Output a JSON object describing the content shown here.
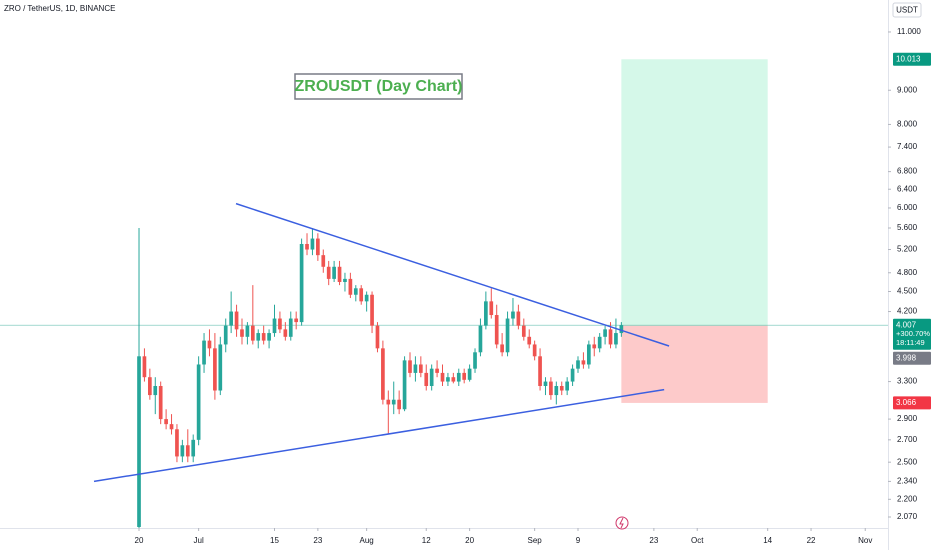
{
  "chart_data": {
    "type": "candlestick",
    "title": "ZRO / TetherUS, 1D, BINANCE",
    "annotation": "ZROUSDT (Day Chart)",
    "y_axis_label": "USDT",
    "log_scale": true,
    "grid": false,
    "up_color": "#26a69a",
    "down_color": "#ef5350",
    "line_color": "#3b5fe0",
    "xlim": [
      -25.65,
      138.2
    ],
    "ylim": [
      1.993,
      12.28
    ],
    "xticks": [
      {
        "value": 0,
        "label": "20"
      },
      {
        "value": 11,
        "label": "Jul"
      },
      {
        "value": 25,
        "label": "15"
      },
      {
        "value": 33,
        "label": "23"
      },
      {
        "value": 42,
        "label": "Aug"
      },
      {
        "value": 53,
        "label": "12"
      },
      {
        "value": 61,
        "label": "20"
      },
      {
        "value": 73,
        "label": "Sep"
      },
      {
        "value": 81,
        "label": "9"
      },
      {
        "value": 95,
        "label": "23"
      },
      {
        "value": 103,
        "label": "Oct"
      },
      {
        "value": 116,
        "label": "14"
      },
      {
        "value": 124,
        "label": "22"
      },
      {
        "value": 134,
        "label": "Nov"
      }
    ],
    "yticks": [
      {
        "value": 11,
        "label": "11.000"
      },
      {
        "value": 9,
        "label": "9.000"
      },
      {
        "value": 8,
        "label": "8.000"
      },
      {
        "value": 7.4,
        "label": "7.400"
      },
      {
        "value": 6.8,
        "label": "6.800"
      },
      {
        "value": 6.4,
        "label": "6.400"
      },
      {
        "value": 6,
        "label": "6.000"
      },
      {
        "value": 5.6,
        "label": "5.600"
      },
      {
        "value": 5.2,
        "label": "5.200"
      },
      {
        "value": 4.8,
        "label": "4.800"
      },
      {
        "value": 4.5,
        "label": "4.500"
      },
      {
        "value": 4.2,
        "label": "4.200"
      },
      {
        "value": 3.3,
        "label": "3.300"
      },
      {
        "value": 2.9,
        "label": "2.900"
      },
      {
        "value": 2.7,
        "label": "2.700"
      },
      {
        "value": 2.5,
        "label": "2.500"
      },
      {
        "value": 2.34,
        "label": "2.340"
      },
      {
        "value": 2.2,
        "label": "2.200"
      },
      {
        "value": 2.07,
        "label": "2.070"
      }
    ],
    "x": [
      0,
      1,
      2,
      3,
      4,
      5,
      6,
      7,
      8,
      9,
      10,
      11,
      12,
      13,
      14,
      15,
      16,
      17,
      18,
      19,
      20,
      21,
      22,
      23,
      24,
      25,
      26,
      27,
      28,
      29,
      30,
      31,
      32,
      33,
      34,
      35,
      36,
      37,
      38,
      39,
      40,
      41,
      42,
      43,
      44,
      45,
      46,
      47,
      48,
      49,
      50,
      51,
      52,
      53,
      54,
      55,
      56,
      57,
      58,
      59,
      60,
      61,
      62,
      63,
      64,
      65,
      66,
      67,
      68,
      69,
      70,
      71,
      72,
      73,
      74,
      75,
      76,
      77,
      78,
      79,
      80,
      81,
      82,
      83,
      84,
      85,
      86,
      87,
      88,
      89
    ],
    "ohlc": [
      [
        2.0,
        5.6,
        1.99,
        3.6
      ],
      [
        3.6,
        3.7,
        3.3,
        3.35
      ],
      [
        3.35,
        3.45,
        3.1,
        3.15
      ],
      [
        3.15,
        3.35,
        2.95,
        3.25
      ],
      [
        3.25,
        3.3,
        2.85,
        2.9
      ],
      [
        2.9,
        3.0,
        2.8,
        2.85
      ],
      [
        2.85,
        2.95,
        2.75,
        2.8
      ],
      [
        2.8,
        2.85,
        2.5,
        2.55
      ],
      [
        2.55,
        2.7,
        2.5,
        2.65
      ],
      [
        2.65,
        2.8,
        2.5,
        2.55
      ],
      [
        2.55,
        2.75,
        2.5,
        2.7
      ],
      [
        2.7,
        3.6,
        2.65,
        3.5
      ],
      [
        3.5,
        3.9,
        3.4,
        3.8
      ],
      [
        3.8,
        3.95,
        3.6,
        3.7
      ],
      [
        3.7,
        3.9,
        3.1,
        3.2
      ],
      [
        3.2,
        3.85,
        3.15,
        3.75
      ],
      [
        3.75,
        4.1,
        3.65,
        4.0
      ],
      [
        4.0,
        4.5,
        3.9,
        4.2
      ],
      [
        4.2,
        4.3,
        3.85,
        3.95
      ],
      [
        3.95,
        4.1,
        3.75,
        3.85
      ],
      [
        3.85,
        4.05,
        3.75,
        4.0
      ],
      [
        4.0,
        4.6,
        3.75,
        3.8
      ],
      [
        3.8,
        3.95,
        3.7,
        3.9
      ],
      [
        3.9,
        4.0,
        3.75,
        3.8
      ],
      [
        3.8,
        3.95,
        3.7,
        3.9
      ],
      [
        3.9,
        4.3,
        3.85,
        4.1
      ],
      [
        4.1,
        4.2,
        3.9,
        3.95
      ],
      [
        3.95,
        4.05,
        3.8,
        3.85
      ],
      [
        3.85,
        4.2,
        3.8,
        4.1
      ],
      [
        4.1,
        4.2,
        3.95,
        4.05
      ],
      [
        4.05,
        5.4,
        4.0,
        5.3
      ],
      [
        5.3,
        5.5,
        5.1,
        5.2
      ],
      [
        5.2,
        5.6,
        5.1,
        5.4
      ],
      [
        5.4,
        5.5,
        5.0,
        5.1
      ],
      [
        5.1,
        5.2,
        4.8,
        4.9
      ],
      [
        4.9,
        5.0,
        4.6,
        4.7
      ],
      [
        4.7,
        5.0,
        4.65,
        4.9
      ],
      [
        4.9,
        5.0,
        4.6,
        4.65
      ],
      [
        4.65,
        4.8,
        4.5,
        4.7
      ],
      [
        4.7,
        4.8,
        4.4,
        4.45
      ],
      [
        4.45,
        4.6,
        4.35,
        4.55
      ],
      [
        4.55,
        4.6,
        4.3,
        4.35
      ],
      [
        4.35,
        4.5,
        4.2,
        4.45
      ],
      [
        4.45,
        4.5,
        3.9,
        4.0
      ],
      [
        4.0,
        4.05,
        3.65,
        3.7
      ],
      [
        3.7,
        3.8,
        3.05,
        3.1
      ],
      [
        3.1,
        3.2,
        2.75,
        3.05
      ],
      [
        3.05,
        3.3,
        2.95,
        3.1
      ],
      [
        3.1,
        3.2,
        2.95,
        3.0
      ],
      [
        3.0,
        3.6,
        2.98,
        3.55
      ],
      [
        3.55,
        3.65,
        3.35,
        3.4
      ],
      [
        3.4,
        3.6,
        3.3,
        3.5
      ],
      [
        3.5,
        3.6,
        3.35,
        3.4
      ],
      [
        3.4,
        3.5,
        3.2,
        3.25
      ],
      [
        3.25,
        3.5,
        3.2,
        3.45
      ],
      [
        3.45,
        3.55,
        3.35,
        3.4
      ],
      [
        3.4,
        3.5,
        3.25,
        3.3
      ],
      [
        3.3,
        3.4,
        3.25,
        3.35
      ],
      [
        3.35,
        3.4,
        3.28,
        3.3
      ],
      [
        3.3,
        3.45,
        3.25,
        3.4
      ],
      [
        3.4,
        3.45,
        3.28,
        3.32
      ],
      [
        3.32,
        3.5,
        3.3,
        3.45
      ],
      [
        3.45,
        3.7,
        3.4,
        3.65
      ],
      [
        3.65,
        4.1,
        3.6,
        4.0
      ],
      [
        4.0,
        4.5,
        3.95,
        4.35
      ],
      [
        4.35,
        4.55,
        4.1,
        4.15
      ],
      [
        4.15,
        4.3,
        3.7,
        3.75
      ],
      [
        3.75,
        3.9,
        3.6,
        3.65
      ],
      [
        3.65,
        4.2,
        3.6,
        4.1
      ],
      [
        4.1,
        4.4,
        4.0,
        4.2
      ],
      [
        4.2,
        4.3,
        3.95,
        4.0
      ],
      [
        4.0,
        4.1,
        3.8,
        3.85
      ],
      [
        3.85,
        3.95,
        3.7,
        3.75
      ],
      [
        3.75,
        3.8,
        3.55,
        3.6
      ],
      [
        3.6,
        3.7,
        3.2,
        3.25
      ],
      [
        3.25,
        3.35,
        3.15,
        3.3
      ],
      [
        3.3,
        3.35,
        3.1,
        3.15
      ],
      [
        3.15,
        3.3,
        3.05,
        3.25
      ],
      [
        3.25,
        3.3,
        3.15,
        3.2
      ],
      [
        3.2,
        3.35,
        3.15,
        3.3
      ],
      [
        3.3,
        3.5,
        3.25,
        3.45
      ],
      [
        3.45,
        3.6,
        3.4,
        3.55
      ],
      [
        3.55,
        3.65,
        3.45,
        3.5
      ],
      [
        3.5,
        3.8,
        3.45,
        3.75
      ],
      [
        3.75,
        3.85,
        3.6,
        3.7
      ],
      [
        3.7,
        3.9,
        3.65,
        3.85
      ],
      [
        3.85,
        4.0,
        3.75,
        3.95
      ],
      [
        3.95,
        4.05,
        3.7,
        3.75
      ],
      [
        3.75,
        4.1,
        3.7,
        3.9
      ],
      [
        3.9,
        4.05,
        3.85,
        4.007
      ]
    ],
    "trend_lines": [
      {
        "x": [
          17.9,
          97.8
        ],
        "y": [
          6.09,
          3.73
        ]
      },
      {
        "x": [
          -8.3,
          96.9
        ],
        "y": [
          2.34,
          3.21
        ]
      }
    ],
    "price_labels": [
      {
        "value": 10.013,
        "label": "10.013",
        "color": "#089981"
      },
      {
        "value": 4.007,
        "label": "4.007",
        "color": "#089981",
        "extra": [
          "+300.70%",
          "18:11:49"
        ]
      },
      {
        "value": 3.998,
        "label": "3.998",
        "color": "#787b86"
      },
      {
        "value": 3.066,
        "label": "3.066",
        "color": "#f23645"
      }
    ],
    "position": {
      "x": [
        89,
        116
      ],
      "entry": 4.0,
      "target_color": "#d5f8e9",
      "stop_color": "#fdcaca"
    }
  }
}
